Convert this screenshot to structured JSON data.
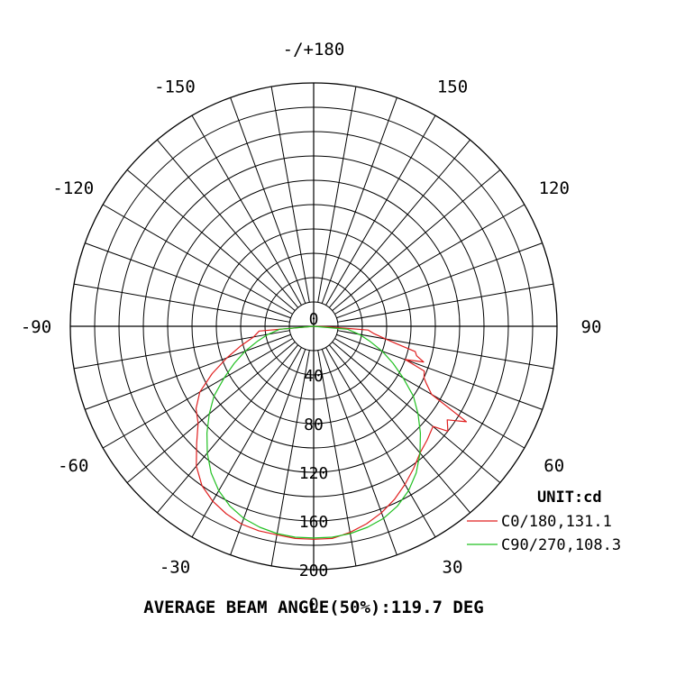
{
  "chart_data": {
    "type": "polar-line",
    "unit_label": "UNIT:cd",
    "footer": "AVERAGE BEAM ANGLE(50%):119.7 DEG",
    "angle_labels": [
      {
        "deg": 0,
        "text": "0"
      },
      {
        "deg": 30,
        "text": "30"
      },
      {
        "deg": 60,
        "text": "60"
      },
      {
        "deg": 90,
        "text": "90"
      },
      {
        "deg": 120,
        "text": "120"
      },
      {
        "deg": 150,
        "text": "150"
      },
      {
        "deg": 180,
        "text": "-/+180"
      },
      {
        "deg": -150,
        "text": "-150"
      },
      {
        "deg": -120,
        "text": "-120"
      },
      {
        "deg": -90,
        "text": "-90"
      },
      {
        "deg": -60,
        "text": "-60"
      },
      {
        "deg": -30,
        "text": "-30"
      }
    ],
    "radial_ticks": [
      0,
      40,
      80,
      120,
      160,
      200
    ],
    "rlim": [
      0,
      200
    ],
    "series": [
      {
        "name": "C0/180,131.1",
        "color": "#e02020",
        "points": [
          [
            -90,
            0
          ],
          [
            -85,
            45
          ],
          [
            -80,
            50
          ],
          [
            -75,
            62
          ],
          [
            -70,
            76
          ],
          [
            -65,
            92
          ],
          [
            -60,
            108
          ],
          [
            -55,
            118
          ],
          [
            -50,
            124
          ],
          [
            -45,
            136
          ],
          [
            -40,
            150
          ],
          [
            -35,
            160
          ],
          [
            -30,
            166
          ],
          [
            -25,
            170
          ],
          [
            -20,
            173
          ],
          [
            -15,
            174
          ],
          [
            -10,
            174
          ],
          [
            -5,
            175
          ],
          [
            0,
            175
          ],
          [
            5,
            175
          ],
          [
            10,
            172
          ],
          [
            15,
            168
          ],
          [
            20,
            163
          ],
          [
            25,
            157
          ],
          [
            30,
            150
          ],
          [
            35,
            143
          ],
          [
            40,
            136
          ],
          [
            45,
            132
          ],
          [
            50,
            128
          ],
          [
            52,
            140
          ],
          [
            55,
            134
          ],
          [
            58,
            148
          ],
          [
            60,
            112
          ],
          [
            63,
            104
          ],
          [
            65,
            100
          ],
          [
            68,
            98
          ],
          [
            70,
            80
          ],
          [
            72,
            95
          ],
          [
            74,
            88
          ],
          [
            76,
            86
          ],
          [
            78,
            70
          ],
          [
            80,
            60
          ],
          [
            83,
            50
          ],
          [
            86,
            45
          ],
          [
            88,
            10
          ],
          [
            90,
            0
          ]
        ]
      },
      {
        "name": "C90/270,108.3",
        "color": "#22c022",
        "points": [
          [
            -90,
            0
          ],
          [
            -85,
            28
          ],
          [
            -80,
            38
          ],
          [
            -75,
            48
          ],
          [
            -70,
            60
          ],
          [
            -65,
            72
          ],
          [
            -60,
            85
          ],
          [
            -55,
            100
          ],
          [
            -50,
            112
          ],
          [
            -45,
            124
          ],
          [
            -40,
            136
          ],
          [
            -35,
            147
          ],
          [
            -30,
            156
          ],
          [
            -25,
            163
          ],
          [
            -20,
            168
          ],
          [
            -15,
            171
          ],
          [
            -10,
            173
          ],
          [
            -5,
            174
          ],
          [
            0,
            174
          ],
          [
            5,
            174
          ],
          [
            10,
            173
          ],
          [
            15,
            171
          ],
          [
            20,
            168
          ],
          [
            25,
            163
          ],
          [
            30,
            156
          ],
          [
            35,
            147
          ],
          [
            40,
            136
          ],
          [
            45,
            124
          ],
          [
            50,
            112
          ],
          [
            55,
            100
          ],
          [
            60,
            85
          ],
          [
            65,
            72
          ],
          [
            70,
            60
          ],
          [
            75,
            48
          ],
          [
            80,
            38
          ],
          [
            85,
            28
          ],
          [
            90,
            0
          ]
        ]
      }
    ]
  }
}
